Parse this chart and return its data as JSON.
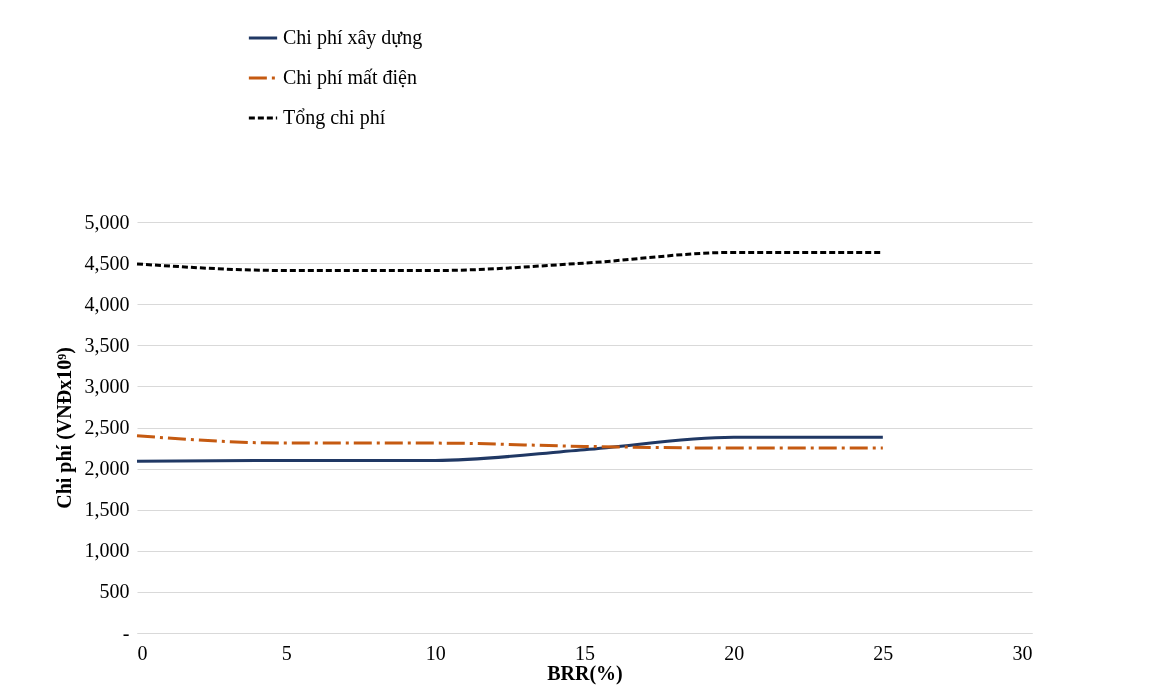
{
  "chart_data": {
    "type": "line",
    "xlabel": "BRR(%)",
    "ylabel": "Chi phí (VNĐx10⁹)",
    "x": [
      0,
      5,
      10,
      15,
      20,
      25
    ],
    "series": [
      {
        "name": "Chi phí xây dựng",
        "color": "#203864",
        "line_style": "solid",
        "values": [
          2090,
          2100,
          2100,
          2230,
          2380,
          2380
        ]
      },
      {
        "name": "Chi phí mất điện",
        "color": "#c55a11",
        "line_style": "dashed",
        "values": [
          2400,
          2310,
          2310,
          2270,
          2250,
          2250
        ]
      },
      {
        "name": "Tổng chi phí",
        "color": "#000000",
        "line_style": "dotted",
        "values": [
          4490,
          4410,
          4410,
          4500,
          4630,
          4630
        ]
      }
    ],
    "xlim": [
      0,
      30
    ],
    "xticks": [
      0,
      5,
      10,
      15,
      20,
      25,
      30
    ],
    "ylim": [
      0,
      5000
    ],
    "yticks": [
      {
        "value": 0,
        "label": "-"
      },
      500,
      {
        "value": 1000,
        "label": "1,000"
      },
      {
        "value": 1500,
        "label": "1,500"
      },
      {
        "value": 2000,
        "label": "2,000"
      },
      {
        "value": 2500,
        "label": "2,500"
      },
      {
        "value": 3000,
        "label": "3,000"
      },
      {
        "value": 3500,
        "label": "3,500"
      },
      {
        "value": 4000,
        "label": "4,000"
      },
      {
        "value": 4500,
        "label": "4,500"
      },
      {
        "value": 5000,
        "label": "5,000"
      }
    ],
    "grid": "y",
    "legend": "top",
    "marker": "none"
  }
}
